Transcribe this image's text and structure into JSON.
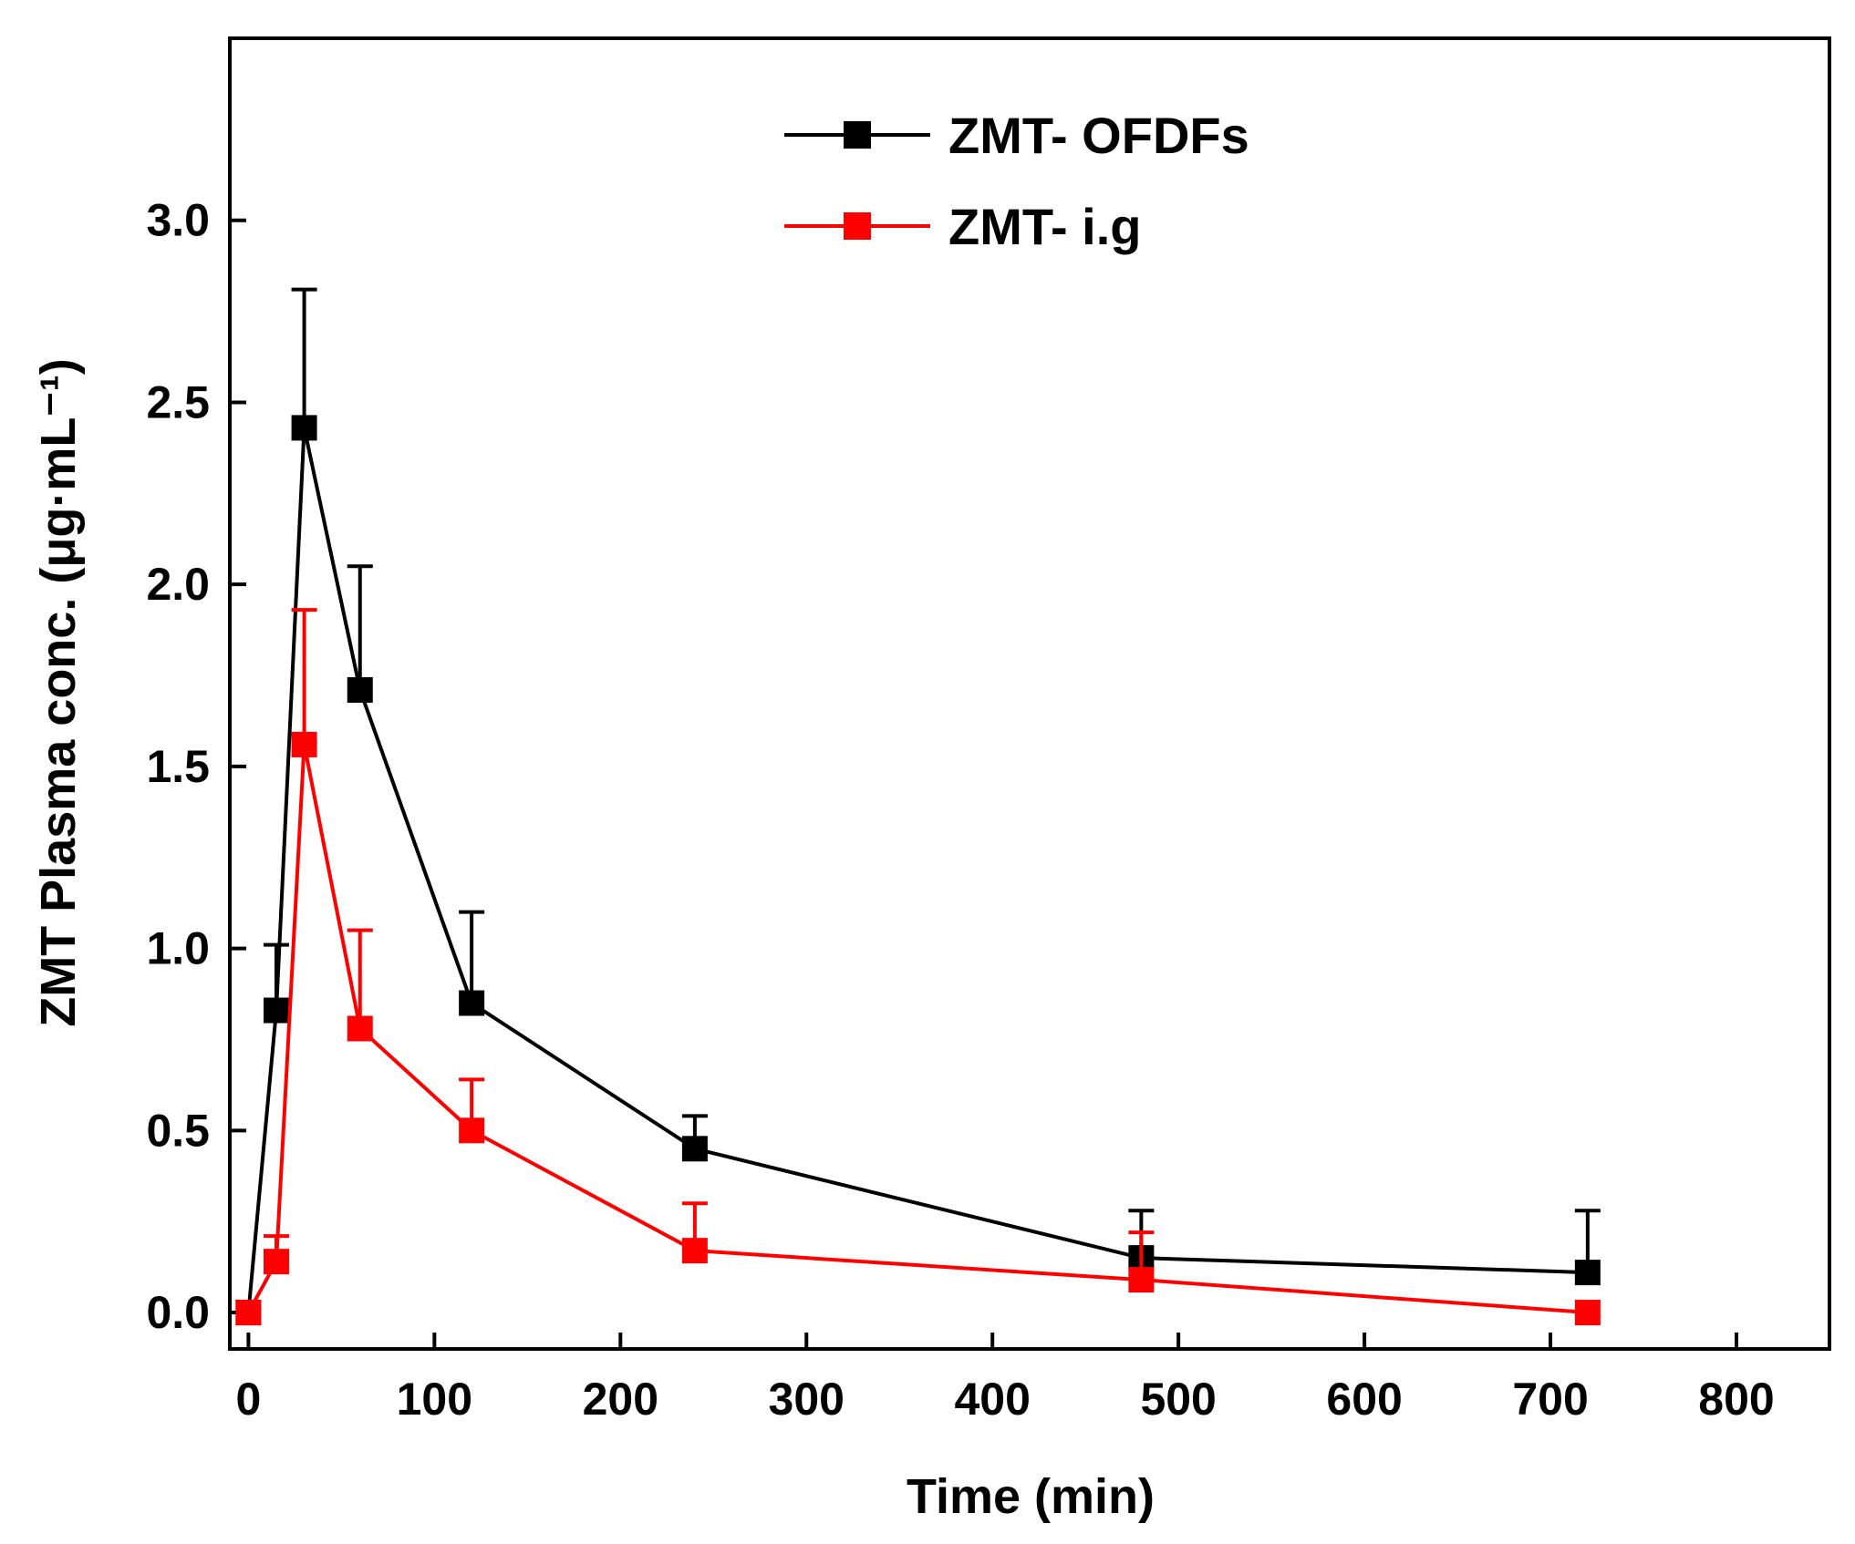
{
  "chart_data": {
    "type": "line",
    "title": "",
    "xlabel": "Time (min)",
    "ylabel": "ZMT Plasma conc. (μg·mL⁻¹)",
    "xlim": [
      -10,
      850
    ],
    "ylim": [
      -0.1,
      3.5
    ],
    "xticks": [
      0,
      100,
      200,
      300,
      400,
      500,
      600,
      700,
      800
    ],
    "yticks": [
      0.0,
      0.5,
      1.0,
      1.5,
      2.0,
      2.5,
      3.0
    ],
    "xtick_labels": [
      "0",
      "100",
      "200",
      "300",
      "400",
      "500",
      "600",
      "700",
      "800"
    ],
    "ytick_labels": [
      "0.0",
      "0.5",
      "1.0",
      "1.5",
      "2.0",
      "2.5",
      "3.0"
    ],
    "legend_position": "top-center",
    "series": [
      {
        "name": "ZMT- OFDFs",
        "color": "#000000",
        "marker": "square",
        "x": [
          0,
          15,
          30,
          60,
          120,
          240,
          480,
          720
        ],
        "values": [
          0.0,
          0.83,
          2.43,
          1.71,
          0.85,
          0.45,
          0.15,
          0.11
        ],
        "error": [
          0.0,
          0.18,
          0.38,
          0.34,
          0.25,
          0.09,
          0.13,
          0.17
        ]
      },
      {
        "name": "ZMT- i.g",
        "color": "#ff0000",
        "marker": "square",
        "x": [
          0,
          15,
          30,
          60,
          120,
          240,
          480,
          720
        ],
        "values": [
          0.0,
          0.14,
          1.56,
          0.78,
          0.5,
          0.17,
          0.09,
          0.0
        ],
        "error": [
          0.0,
          0.07,
          0.37,
          0.27,
          0.14,
          0.13,
          0.13,
          0.0
        ]
      }
    ]
  }
}
